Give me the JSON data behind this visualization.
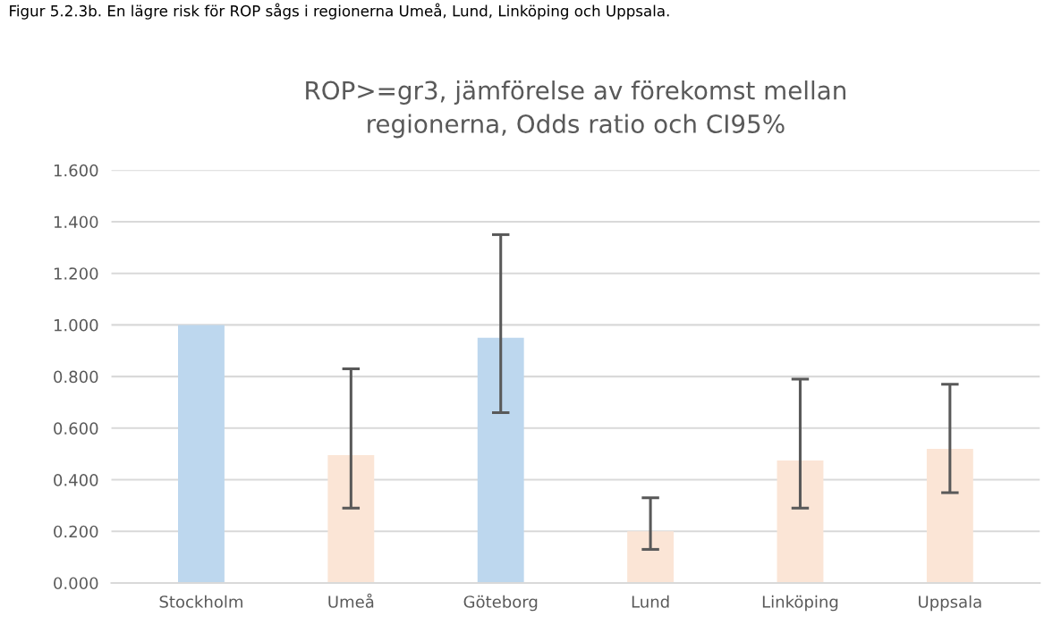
{
  "chart_data": {
    "type": "bar",
    "title": "ROP>=gr3, jämförelse av förekomst mellan\nregionerna, Odds ratio och CI95%",
    "annotations": [
      "Figur 5.2.3b. En lägre risk för ROP sågs i regionerna Umeå, Lund, Linköping och Uppsala."
    ],
    "categories": [
      "Stockholm",
      "Umeå",
      "Göteborg",
      "Lund",
      "Linköping",
      "Uppsala"
    ],
    "values": [
      1.0,
      0.495,
      0.95,
      0.2,
      0.475,
      0.52
    ],
    "colors": [
      "#bdd7ee",
      "#fbe5d6",
      "#bdd7ee",
      "#fbe5d6",
      "#fbe5d6",
      "#fbe5d6"
    ],
    "errors": [
      null,
      [
        0.29,
        0.83
      ],
      [
        0.66,
        1.35
      ],
      [
        0.13,
        0.33
      ],
      [
        0.29,
        0.79
      ],
      [
        0.35,
        0.77
      ]
    ],
    "ylim": [
      0,
      1.6
    ],
    "yticks": [
      {
        "value": 0,
        "label": "0.000"
      },
      {
        "value": 0.2,
        "label": "0.200"
      },
      {
        "value": 0.4,
        "label": "0.400"
      },
      {
        "value": 0.6,
        "label": "0.600"
      },
      {
        "value": 0.8,
        "label": "0.800"
      },
      {
        "value": 1.0,
        "label": "1.000"
      },
      {
        "value": 1.2,
        "label": "1.200"
      },
      {
        "value": 1.4,
        "label": "1.400"
      },
      {
        "value": 1.6,
        "label": "1.600"
      }
    ],
    "grid": "y"
  }
}
